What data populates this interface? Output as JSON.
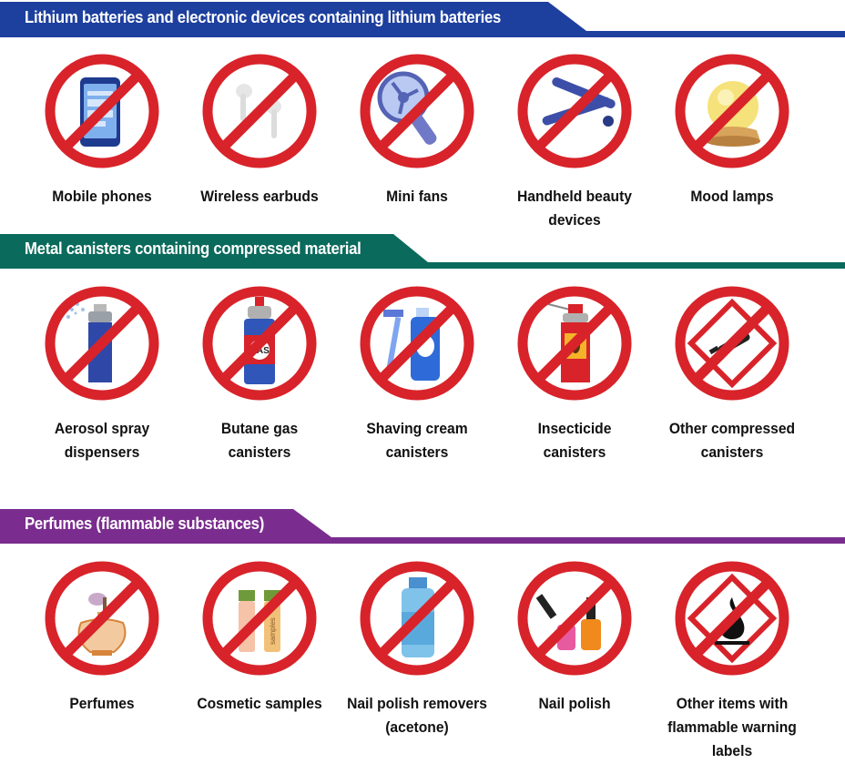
{
  "sections": [
    {
      "title": "Lithium batteries and electronic devices containing lithium batteries",
      "color": "#1d3f9e",
      "items": [
        {
          "label": "Mobile phones",
          "icon": "mobile-phone-icon"
        },
        {
          "label": "Wireless earbuds",
          "icon": "wireless-earbuds-icon"
        },
        {
          "label": "Mini fans",
          "icon": "mini-fan-icon"
        },
        {
          "label": "Handheld beauty devices",
          "icon": "hair-straightener-icon"
        },
        {
          "label": "Mood lamps",
          "icon": "mood-lamp-icon"
        }
      ]
    },
    {
      "title": "Metal canisters containing compressed material",
      "color": "#0a6a5c",
      "items": [
        {
          "label": "Aerosol spray dispensers",
          "lines": [
            "Aerosol spray",
            "dispensers"
          ],
          "icon": "aerosol-spray-icon"
        },
        {
          "label": "Butane gas canisters",
          "lines": [
            "Butane gas",
            "canisters"
          ],
          "icon": "gas-canister-icon",
          "can_text": "GAS"
        },
        {
          "label": "Shaving cream canisters",
          "lines": [
            "Shaving cream",
            "canisters"
          ],
          "icon": "shaving-cream-icon"
        },
        {
          "label": "Insecticide canisters",
          "lines": [
            "Insecticide",
            "canisters"
          ],
          "icon": "insecticide-canister-icon"
        },
        {
          "label": "Other compressed canisters",
          "lines": [
            "Other compressed",
            "canisters"
          ],
          "icon": "compressed-gas-hazard-icon"
        }
      ]
    },
    {
      "title": "Perfumes (flammable substances)",
      "color": "#7a2d8e",
      "items": [
        {
          "label": "Perfumes",
          "icon": "perfume-bottle-icon"
        },
        {
          "label": "Cosmetic samples",
          "icon": "cosmetic-samples-icon",
          "sample_text": "samples"
        },
        {
          "label": "Nail polish removers (acetone)",
          "lines": [
            "Nail polish removers",
            "(acetone)"
          ],
          "icon": "nail-polish-remover-icon"
        },
        {
          "label": "Nail polish",
          "icon": "nail-polish-icon"
        },
        {
          "label": "Other items with flammable warning labels",
          "lines": [
            "Other items with",
            "flammable warning labels"
          ],
          "icon": "flammable-hazard-icon"
        }
      ]
    }
  ],
  "prohibition_color": "#d8232a"
}
